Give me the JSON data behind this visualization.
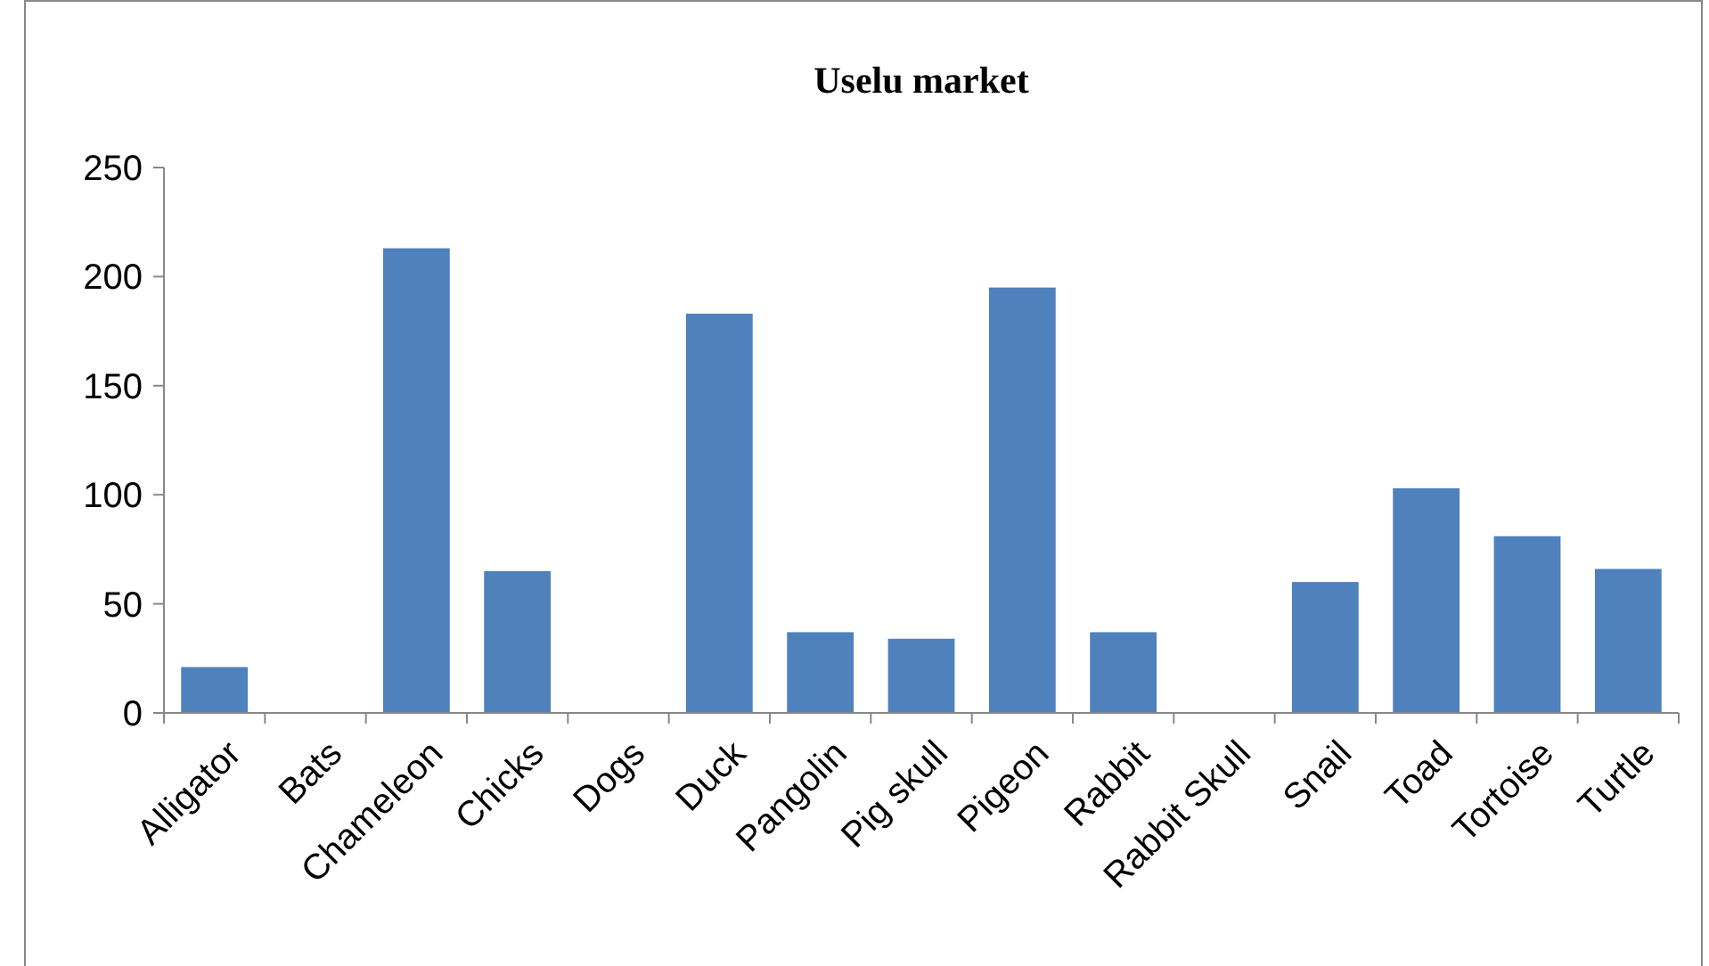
{
  "chart_data": {
    "type": "bar",
    "title": "Uselu market",
    "categories": [
      "Alligator",
      "Bats",
      "Chameleon",
      "Chicks",
      "Dogs",
      "Duck",
      "Pangolin",
      "Pig skull",
      "Pigeon",
      "Rabbit",
      "Rabbit Skull",
      "Snail",
      "Toad",
      "Tortoise",
      "Turtle"
    ],
    "values": [
      21,
      0,
      213,
      65,
      0,
      183,
      37,
      34,
      195,
      37,
      0,
      60,
      103,
      81,
      66
    ],
    "color": "#4f81bd",
    "ylim": [
      0,
      250
    ],
    "yticks": [
      0,
      50,
      100,
      150,
      200,
      250
    ],
    "grid": false
  }
}
